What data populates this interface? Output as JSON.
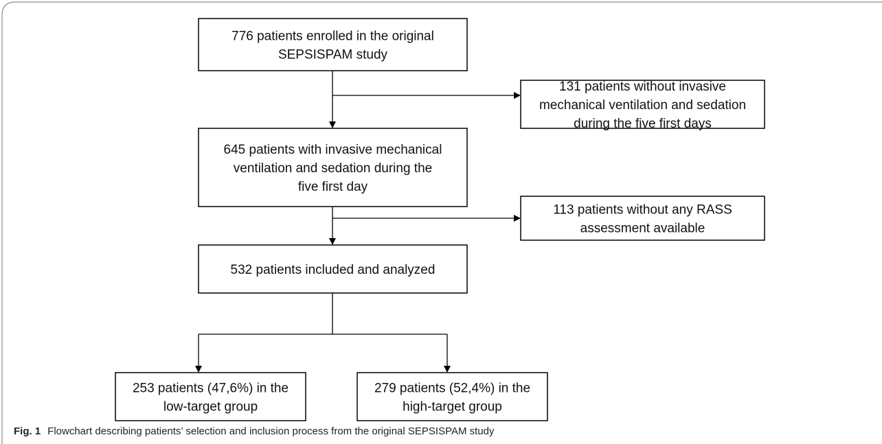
{
  "nodes": [
    {
      "lines": [
        "776 patients enrolled in the original",
        "SEPSISPAM study"
      ]
    },
    {
      "lines": [
        "131 patients without invasive",
        "mechanical ventilation and sedation",
        "during the five first days"
      ]
    },
    {
      "lines": [
        "645 patients with invasive mechanical",
        "ventilation and sedation during the",
        "five first day"
      ]
    },
    {
      "lines": [
        "113 patients without any RASS",
        "assessment available"
      ]
    },
    {
      "lines": [
        "532 patients included and analyzed"
      ]
    },
    {
      "lines": [
        "253 patients (47,6%) in the",
        "low-target group"
      ]
    },
    {
      "lines": [
        "279 patients (52,4%) in the",
        "high-target group"
      ]
    }
  ],
  "caption": {
    "label": "Fig. 1",
    "text": "Flowchart describing patients’ selection and inclusion process from the original SEPSISPAM study"
  }
}
